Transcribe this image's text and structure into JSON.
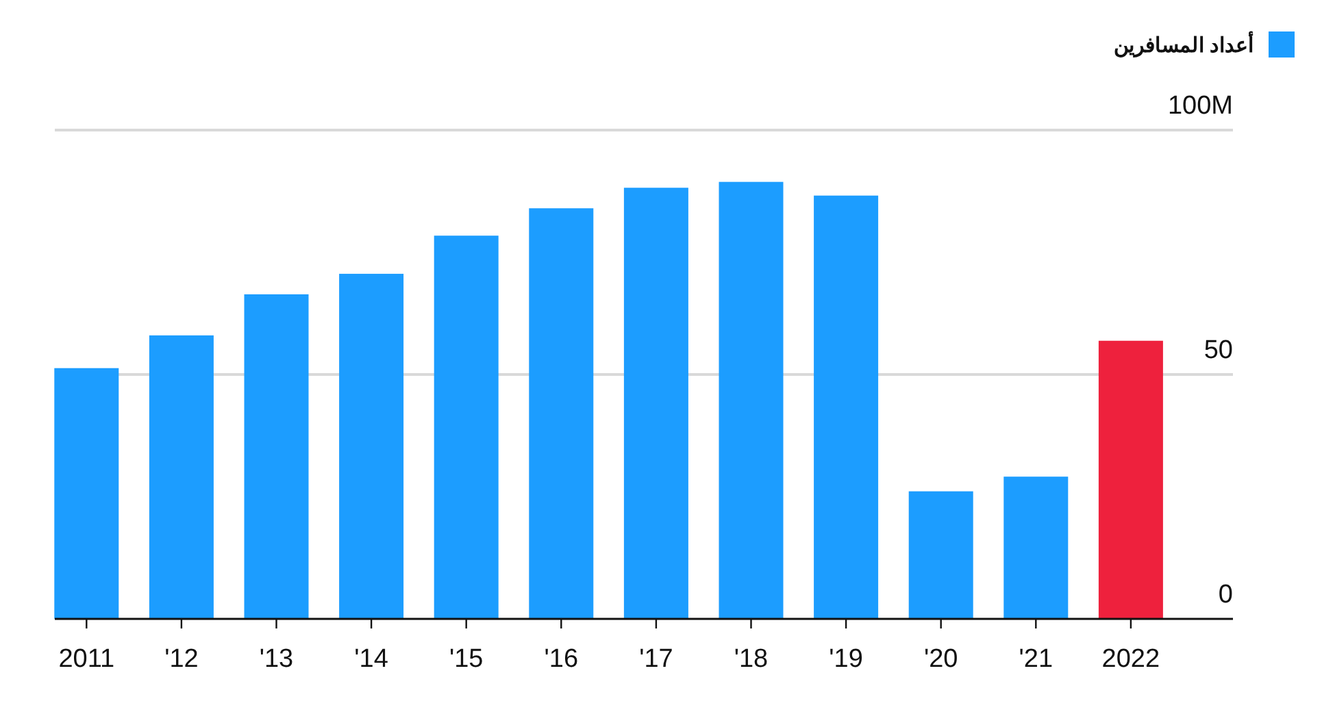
{
  "chart_data": {
    "type": "bar",
    "categories": [
      "2011",
      "'12",
      "'13",
      "'14",
      "'15",
      "'16",
      "'17",
      "'18",
      "'19",
      "'20",
      "'21",
      "2022"
    ],
    "series": [
      {
        "name": "أعداد المسافرين",
        "color": "#1c9dff",
        "colors": [
          "#1c9dff",
          "#1c9dff",
          "#1c9dff",
          "#1c9dff",
          "#1c9dff",
          "#1c9dff",
          "#1c9dff",
          "#1c9dff",
          "#1c9dff",
          "#1c9dff",
          "#1c9dff",
          "#ee213d"
        ],
        "values": [
          51.3,
          58.0,
          66.4,
          70.6,
          78.4,
          84.0,
          88.2,
          89.4,
          86.6,
          26.1,
          29.1,
          56.9
        ]
      }
    ],
    "ylim": [
      0,
      100
    ],
    "yticks": [
      0,
      50,
      {
        "value": 100,
        "label": "100M"
      }
    ],
    "grid": "y",
    "legend": "top right"
  }
}
